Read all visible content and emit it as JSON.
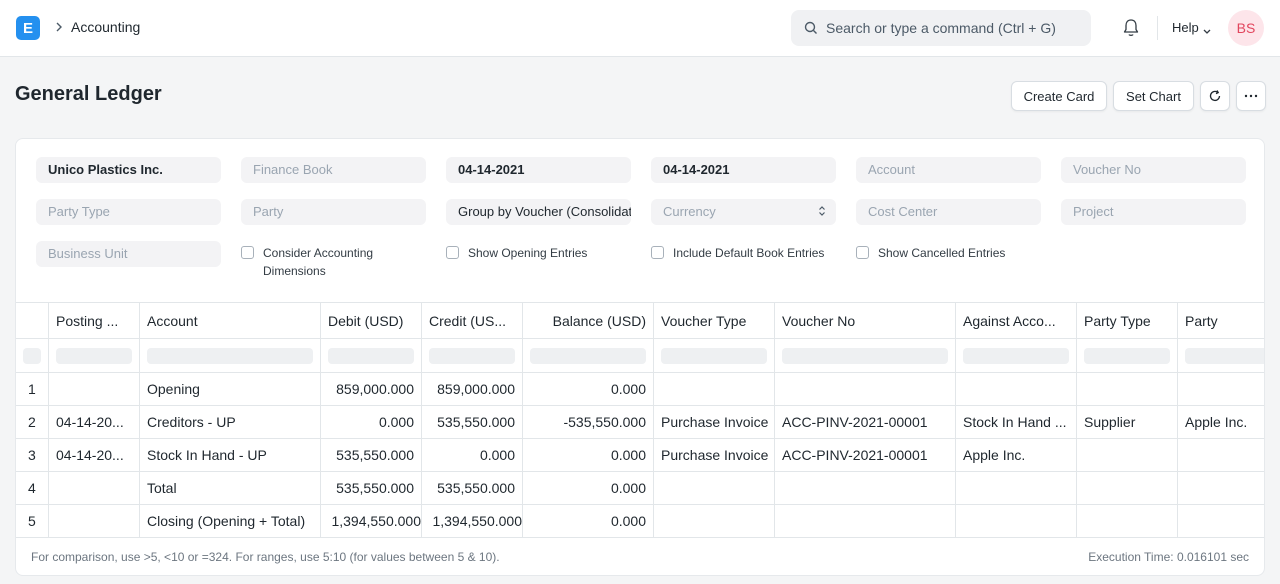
{
  "navbar": {
    "logo_letter": "E",
    "breadcrumb": "Accounting",
    "search_placeholder": "Search or type a command (Ctrl + G)",
    "help_label": "Help",
    "avatar_initials": "BS"
  },
  "page": {
    "title": "General Ledger",
    "actions": {
      "create_card": "Create Card",
      "set_chart": "Set Chart"
    }
  },
  "filters": {
    "company": "Unico Plastics Inc.",
    "finance_book": "Finance Book",
    "from_date": "04-14-2021",
    "to_date": "04-14-2021",
    "account": "Account",
    "voucher_no": "Voucher No",
    "party_type": "Party Type",
    "party": "Party",
    "group_by": "Group by Voucher (Consolidated)",
    "currency": "Currency",
    "cost_center": "Cost Center",
    "project": "Project",
    "business_unit": "Business Unit",
    "chk_accounting_dimensions": "Consider Accounting Dimensions",
    "chk_opening_entries": "Show Opening Entries",
    "chk_default_book": "Include Default Book Entries",
    "chk_cancelled": "Show Cancelled Entries"
  },
  "table": {
    "columns": [
      "Posting ...",
      "Account",
      "Debit (USD)",
      "Credit (US...",
      "Balance (USD)",
      "Voucher Type",
      "Voucher No",
      "Against Acco...",
      "Party Type",
      "Party"
    ],
    "rows": [
      [
        "1",
        "",
        "Opening",
        "859,000.000",
        "859,000.000",
        "0.000",
        "",
        "",
        "",
        "",
        ""
      ],
      [
        "2",
        "04-14-20...",
        "Creditors - UP",
        "0.000",
        "535,550.000",
        "-535,550.000",
        "Purchase Invoice",
        "ACC-PINV-2021-00001",
        "Stock In Hand ...",
        "Supplier",
        "Apple Inc."
      ],
      [
        "3",
        "04-14-20...",
        "Stock In Hand - UP",
        "535,550.000",
        "0.000",
        "0.000",
        "Purchase Invoice",
        "ACC-PINV-2021-00001",
        "Apple Inc.",
        "",
        ""
      ],
      [
        "4",
        "",
        "Total",
        "535,550.000",
        "535,550.000",
        "0.000",
        "",
        "",
        "",
        "",
        ""
      ],
      [
        "5",
        "",
        "Closing (Opening + Total)",
        "1,394,550.000",
        "1,394,550.000",
        "0.000",
        "",
        "",
        "",
        "",
        ""
      ]
    ]
  },
  "footer": {
    "note": "For comparison, use >5, <10 or =324. For ranges, use 5:10 (for values between 5 & 10).",
    "execution_time": "Execution Time: 0.016101 sec"
  }
}
